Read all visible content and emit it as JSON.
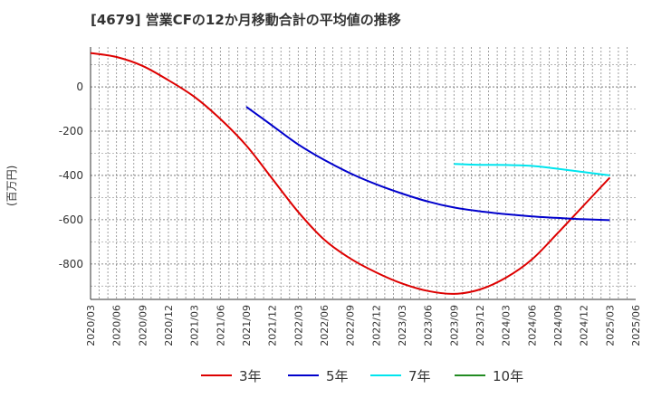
{
  "chart_data": {
    "type": "line",
    "title": "[4679]  営業CFの12か月移動合計の平均値の推移",
    "ylabel": "(百万円)",
    "xlabel": "",
    "ylim": [
      -960,
      180
    ],
    "yticks": [
      0,
      -200,
      -400,
      -600,
      -800
    ],
    "x_ticks": [
      "2020/03",
      "2020/06",
      "2020/09",
      "2020/12",
      "2021/03",
      "2021/06",
      "2021/09",
      "2021/12",
      "2022/03",
      "2022/06",
      "2022/09",
      "2022/12",
      "2023/03",
      "2023/06",
      "2023/09",
      "2023/12",
      "2024/03",
      "2024/06",
      "2024/09",
      "2024/12",
      "2025/03",
      "2025/06"
    ],
    "grid": true,
    "legend_position": "bottom",
    "series": [
      {
        "name": "3年",
        "color": "#dd0000",
        "x": [
          "2020/03",
          "2020/06",
          "2020/09",
          "2020/12",
          "2021/03",
          "2021/06",
          "2021/09",
          "2021/12",
          "2022/03",
          "2022/06",
          "2022/09",
          "2022/12",
          "2023/03",
          "2023/06",
          "2023/09",
          "2023/12",
          "2024/03",
          "2024/06",
          "2024/09",
          "2024/12",
          "2025/03"
        ],
        "values": [
          153,
          135,
          95,
          30,
          -45,
          -145,
          -265,
          -415,
          -565,
          -690,
          -775,
          -838,
          -888,
          -922,
          -935,
          -915,
          -862,
          -780,
          -660,
          -535,
          -410
        ]
      },
      {
        "name": "5年",
        "color": "#0000cc",
        "x": [
          "2021/09",
          "2021/12",
          "2022/03",
          "2022/06",
          "2022/09",
          "2022/12",
          "2023/03",
          "2023/06",
          "2023/09",
          "2023/12",
          "2024/03",
          "2024/06",
          "2024/09",
          "2024/12",
          "2025/03"
        ],
        "values": [
          -90,
          -175,
          -260,
          -330,
          -390,
          -440,
          -482,
          -518,
          -545,
          -562,
          -575,
          -585,
          -592,
          -598,
          -602
        ]
      },
      {
        "name": "7年",
        "color": "#00e5ee",
        "x": [
          "2023/09",
          "2023/12",
          "2024/03",
          "2024/06",
          "2024/09",
          "2024/12",
          "2025/03"
        ],
        "values": [
          -348,
          -352,
          -353,
          -357,
          -370,
          -385,
          -400
        ]
      },
      {
        "name": "10年",
        "color": "#228b22",
        "x": [],
        "values": []
      }
    ]
  }
}
